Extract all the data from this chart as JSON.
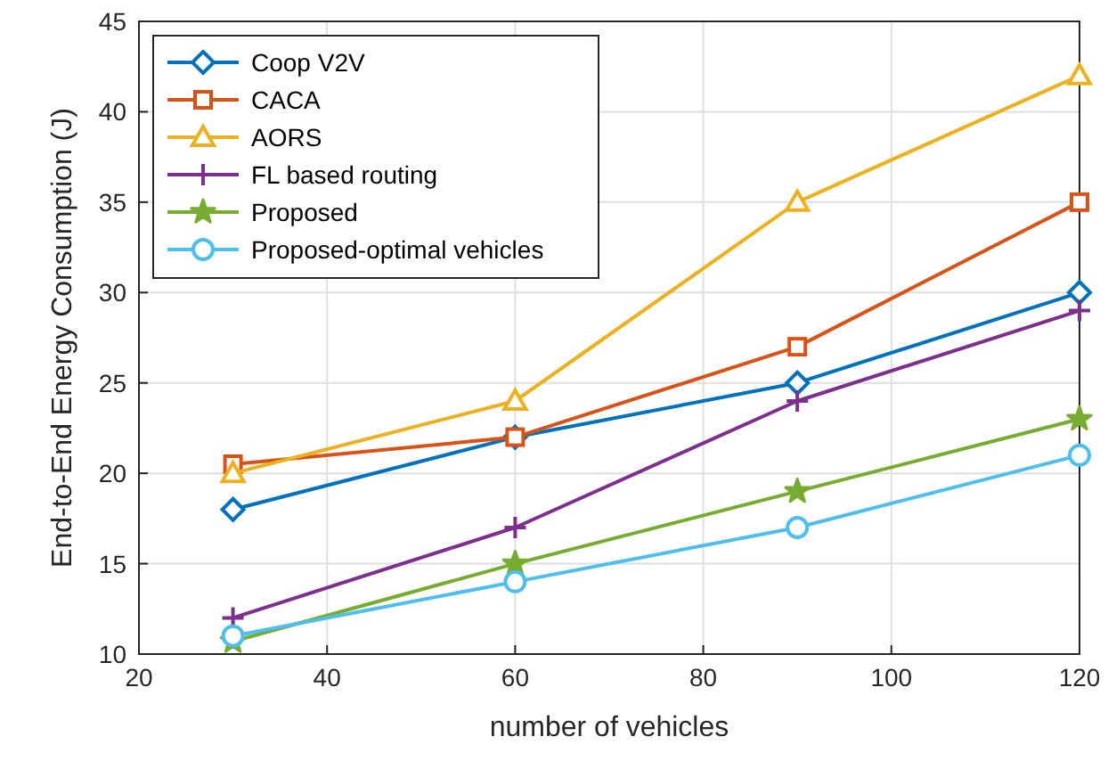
{
  "chart_data": {
    "type": "line",
    "xlabel": "number of vehicles",
    "ylabel": "End-to-End Energy Consumption (J)",
    "x": [
      30,
      60,
      90,
      120
    ],
    "series": [
      {
        "name": "Coop V2V",
        "color": "#0072bd",
        "marker": "diamond",
        "values": [
          18,
          22,
          25,
          30
        ]
      },
      {
        "name": "CACA",
        "color": "#d95319",
        "marker": "square",
        "values": [
          20.5,
          22,
          27,
          35
        ]
      },
      {
        "name": "AORS",
        "color": "#edb120",
        "marker": "triangle",
        "values": [
          20,
          24,
          35,
          42
        ]
      },
      {
        "name": "FL based routing",
        "color": "#7e2f8e",
        "marker": "cross",
        "values": [
          12,
          17,
          24,
          29
        ]
      },
      {
        "name": "Proposed",
        "color": "#77ac30",
        "marker": "star",
        "values": [
          10.7,
          15,
          19,
          23
        ]
      },
      {
        "name": "Proposed-optimal vehicles",
        "color": "#4dbeee",
        "marker": "circle",
        "values": [
          11,
          14,
          17,
          21
        ]
      }
    ],
    "xlim": [
      20,
      120
    ],
    "xticks": [
      20,
      40,
      60,
      80,
      100,
      120
    ],
    "ylim": [
      10,
      45
    ],
    "yticks": [
      10,
      15,
      20,
      25,
      30,
      35,
      40,
      45
    ],
    "grid": true,
    "legend": "top left",
    "line_style": "solid"
  }
}
